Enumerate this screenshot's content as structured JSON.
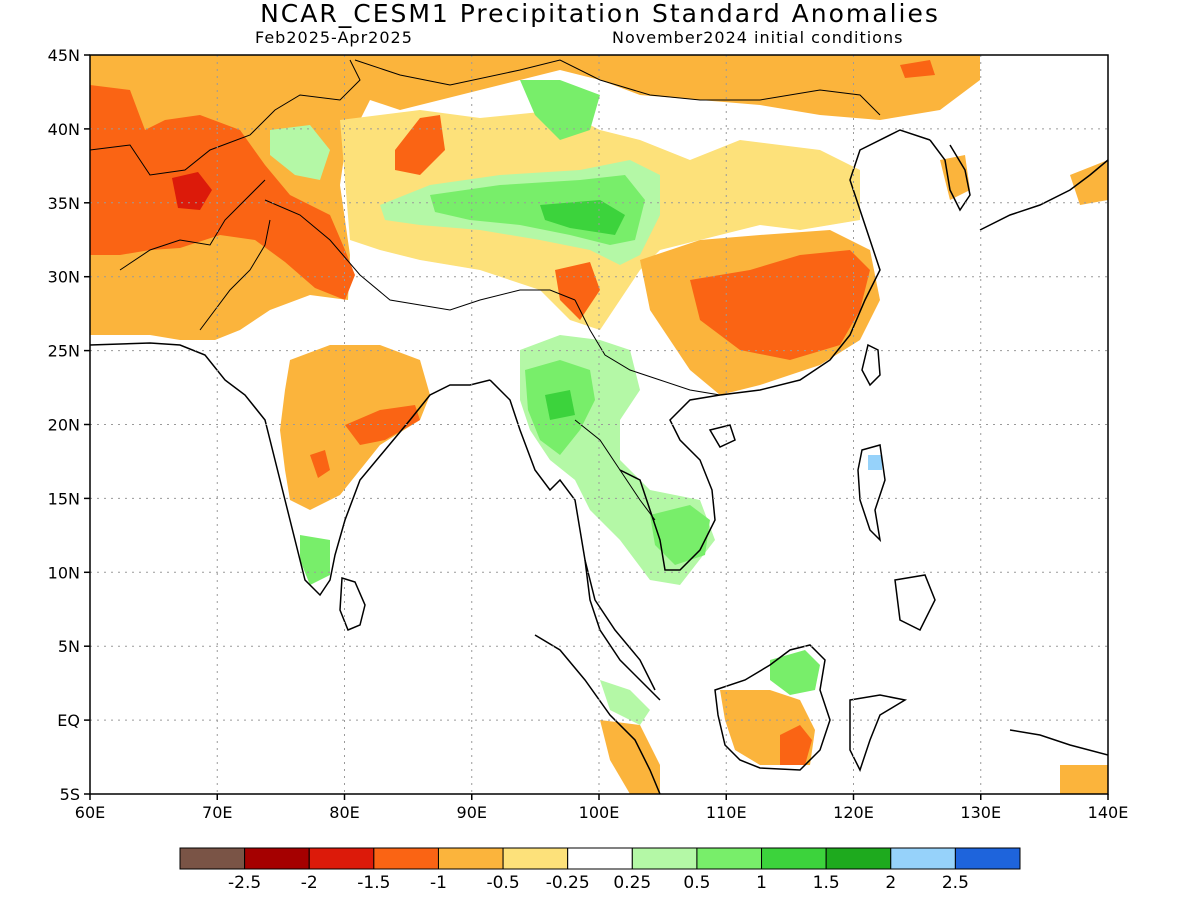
{
  "title": "NCAR_CESM1 Precipitation Standard Anomalies",
  "subtitle_left": "Feb2025-Apr2025",
  "subtitle_right": "November2024 initial conditions",
  "lat_labels": [
    "45N",
    "40N",
    "35N",
    "30N",
    "25N",
    "20N",
    "15N",
    "10N",
    "5N",
    "EQ",
    "5S"
  ],
  "lon_labels": [
    "60E",
    "70E",
    "80E",
    "90E",
    "100E",
    "110E",
    "120E",
    "130E",
    "140E"
  ],
  "colorbar": {
    "colors": [
      "#7a5446",
      "#a50000",
      "#dc1a0a",
      "#fa6414",
      "#fbb43c",
      "#fde17a",
      "#ffffff",
      "#b4f8a6",
      "#78ee6a",
      "#3cd33c",
      "#1eaa1e",
      "#96d2fa",
      "#1e64dc"
    ],
    "labels": [
      "-2.5",
      "-2",
      "-1.5",
      "-1",
      "-0.5",
      "-0.25",
      "0.25",
      "0.5",
      "1",
      "1.5",
      "2",
      "2.5"
    ]
  },
  "colors": {
    "coastline": "#000000",
    "grid": "#9a9a9a"
  }
}
